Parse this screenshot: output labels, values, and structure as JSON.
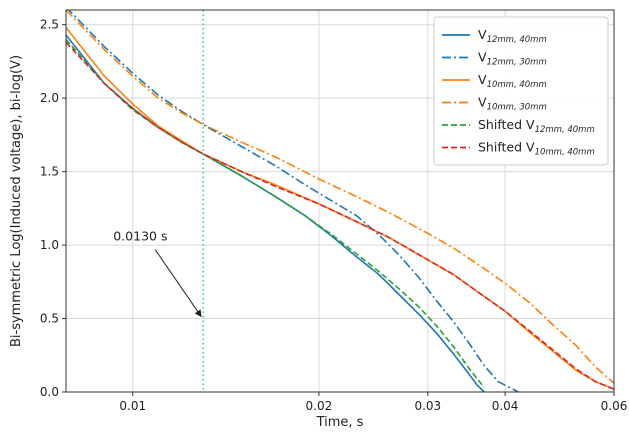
{
  "chart_data": {
    "type": "line",
    "title": "",
    "xlabel": "Time, s",
    "ylabel": "Bi-symmetric Log(Induced voltage), bi-log(V)",
    "x_scale": "log",
    "xlim": [
      0.0078,
      0.06
    ],
    "ylim": [
      0.0,
      2.6
    ],
    "x_ticks": [
      0.01,
      0.02,
      0.03,
      0.04,
      0.06
    ],
    "x_tick_labels": [
      "0.01",
      "0.02",
      "0.03",
      "0.04",
      "0.06"
    ],
    "y_ticks": [
      0.0,
      0.5,
      1.0,
      1.5,
      2.0,
      2.5
    ],
    "y_tick_labels": [
      "0.0",
      "0.5",
      "1.0",
      "1.5",
      "2.0",
      "2.5"
    ],
    "grid": true,
    "legend_position": "top-right",
    "series": [
      {
        "name": "V_{12mm,40mm}",
        "color": "#1f77b4",
        "style": "solid",
        "x": [
          0.0078,
          0.009,
          0.01,
          0.011,
          0.012,
          0.013,
          0.015,
          0.017,
          0.019,
          0.021,
          0.023,
          0.025,
          0.027,
          0.029,
          0.031,
          0.033,
          0.035,
          0.036,
          0.037
        ],
        "y": [
          2.43,
          2.1,
          1.93,
          1.8,
          1.7,
          1.62,
          1.47,
          1.33,
          1.2,
          1.06,
          0.92,
          0.8,
          0.66,
          0.53,
          0.4,
          0.26,
          0.12,
          0.05,
          0.0
        ]
      },
      {
        "name": "V_{12mm,30mm}",
        "color": "#1f77b4",
        "style": "dashdot",
        "x": [
          0.0078,
          0.009,
          0.01,
          0.011,
          0.012,
          0.013,
          0.015,
          0.017,
          0.019,
          0.021,
          0.023,
          0.025,
          0.027,
          0.029,
          0.031,
          0.033,
          0.035,
          0.037,
          0.039,
          0.042
        ],
        "y": [
          2.62,
          2.35,
          2.17,
          2.02,
          1.91,
          1.82,
          1.67,
          1.54,
          1.41,
          1.3,
          1.2,
          1.07,
          0.93,
          0.78,
          0.62,
          0.48,
          0.33,
          0.18,
          0.07,
          0.0
        ]
      },
      {
        "name": "V_{10mm,40mm}",
        "color": "#ff7f0e",
        "style": "solid",
        "x": [
          0.0078,
          0.009,
          0.01,
          0.011,
          0.012,
          0.013,
          0.015,
          0.017,
          0.02,
          0.023,
          0.026,
          0.03,
          0.033,
          0.037,
          0.04,
          0.044,
          0.048,
          0.052,
          0.056,
          0.06
        ],
        "y": [
          2.48,
          2.15,
          1.96,
          1.81,
          1.71,
          1.62,
          1.5,
          1.41,
          1.28,
          1.16,
          1.05,
          0.9,
          0.8,
          0.65,
          0.55,
          0.4,
          0.27,
          0.15,
          0.07,
          0.02
        ]
      },
      {
        "name": "V_{10mm,30mm}",
        "color": "#ff7f0e",
        "style": "dashdot",
        "x": [
          0.0078,
          0.009,
          0.01,
          0.011,
          0.012,
          0.013,
          0.015,
          0.017,
          0.02,
          0.023,
          0.026,
          0.03,
          0.033,
          0.037,
          0.04,
          0.044,
          0.048,
          0.052,
          0.056,
          0.06
        ],
        "y": [
          2.6,
          2.33,
          2.15,
          2.0,
          1.9,
          1.82,
          1.7,
          1.6,
          1.45,
          1.33,
          1.22,
          1.08,
          0.98,
          0.84,
          0.74,
          0.6,
          0.45,
          0.32,
          0.17,
          0.06
        ]
      },
      {
        "name": "Shifted V_{12mm,40mm}",
        "color": "#2ca02c",
        "style": "dashed",
        "x": [
          0.0078,
          0.009,
          0.01,
          0.011,
          0.012,
          0.013,
          0.015,
          0.017,
          0.019,
          0.021,
          0.023,
          0.025,
          0.027,
          0.029,
          0.031,
          0.033,
          0.035,
          0.037
        ],
        "y": [
          2.4,
          2.1,
          1.92,
          1.8,
          1.7,
          1.62,
          1.47,
          1.33,
          1.2,
          1.07,
          0.94,
          0.82,
          0.7,
          0.58,
          0.45,
          0.31,
          0.16,
          0.03
        ]
      },
      {
        "name": "Shifted V_{10mm,40mm}",
        "color": "#d62728",
        "style": "dashed",
        "x": [
          0.0078,
          0.009,
          0.01,
          0.011,
          0.012,
          0.013,
          0.015,
          0.017,
          0.02,
          0.023,
          0.026,
          0.03,
          0.033,
          0.037,
          0.04,
          0.044,
          0.048,
          0.052,
          0.056,
          0.06
        ],
        "y": [
          2.38,
          2.1,
          1.93,
          1.8,
          1.7,
          1.62,
          1.5,
          1.4,
          1.28,
          1.16,
          1.05,
          0.9,
          0.8,
          0.65,
          0.55,
          0.41,
          0.28,
          0.16,
          0.07,
          0.02
        ]
      }
    ],
    "vline": {
      "x": 0.013,
      "color": "#17becf",
      "style": "dotted"
    },
    "annotations": [
      {
        "text": "0.0130 s",
        "text_x": 0.0093,
        "text_y": 1.03,
        "arrow_to_x": 0.013,
        "arrow_to_y": 0.5
      }
    ],
    "legend": [
      {
        "base": "V",
        "sub": "12mm, 40mm",
        "color": "#1f77b4",
        "style": "solid"
      },
      {
        "base": "V",
        "sub": "12mm, 30mm",
        "color": "#1f77b4",
        "style": "dashdot"
      },
      {
        "base": "V",
        "sub": "10mm, 40mm",
        "color": "#ff7f0e",
        "style": "solid"
      },
      {
        "base": "V",
        "sub": "10mm, 30mm",
        "color": "#ff7f0e",
        "style": "dashdot"
      },
      {
        "base": "Shifted V",
        "sub": "12mm, 40mm",
        "color": "#2ca02c",
        "style": "dashed"
      },
      {
        "base": "Shifted V",
        "sub": "10mm, 40mm",
        "color": "#d62728",
        "style": "dashed"
      }
    ]
  }
}
